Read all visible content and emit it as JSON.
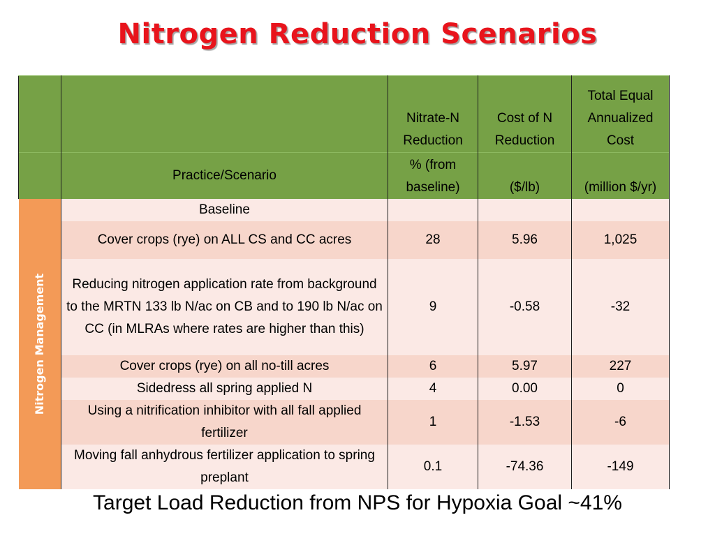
{
  "title": "Nitrogen Reduction Scenarios",
  "colors": {
    "title": "#e8141c",
    "header_bg": "#76a146",
    "sidebar_bg": "#f39a57",
    "row_light": "#fbe9e5",
    "row_dark": "#f7d6cb"
  },
  "table": {
    "headers": {
      "practice": "Practice/Scenario",
      "nitrate_line1": "Nitrate-N",
      "nitrate_line2": "Reduction",
      "nitrate_unit1": "% (from",
      "nitrate_unit2": "baseline)",
      "cost_line1": "Cost of N",
      "cost_line2": "Reduction",
      "cost_unit": "($/lb)",
      "total_line1": "Total Equal",
      "total_line2": "Annualized",
      "total_line3": "Cost",
      "total_unit": "(million $/yr)"
    },
    "sidebar_label": "Nitrogen Management",
    "rows": [
      {
        "practice": "Baseline",
        "nitrate": "",
        "cost": "",
        "total": ""
      },
      {
        "practice": "Cover crops (rye) on ALL CS and CC acres",
        "nitrate": "28",
        "cost": "5.96",
        "total": "1,025"
      },
      {
        "practice": "Reducing nitrogen application rate from background to the MRTN 133 lb N/ac on CB and to 190 lb N/ac on CC (in MLRAs where rates are higher than this)",
        "nitrate": "9",
        "cost": "-0.58",
        "total": "-32"
      },
      {
        "practice": "Cover crops (rye) on all no-till acres",
        "nitrate": "6",
        "cost": "5.97",
        "total": "227"
      },
      {
        "practice": "Sidedress all spring applied N",
        "nitrate": "4",
        "cost": "0.00",
        "total": "0"
      },
      {
        "practice": "Using a nitrification inhibitor with all fall applied fertilizer",
        "nitrate": "1",
        "cost": "-1.53",
        "total": "-6"
      },
      {
        "practice": "Moving fall anhydrous fertilizer application to spring preplant",
        "nitrate": "0.1",
        "cost": "-74.36",
        "total": "-149"
      }
    ]
  },
  "footer": "Target Load Reduction from NPS for Hypoxia Goal ~41%"
}
